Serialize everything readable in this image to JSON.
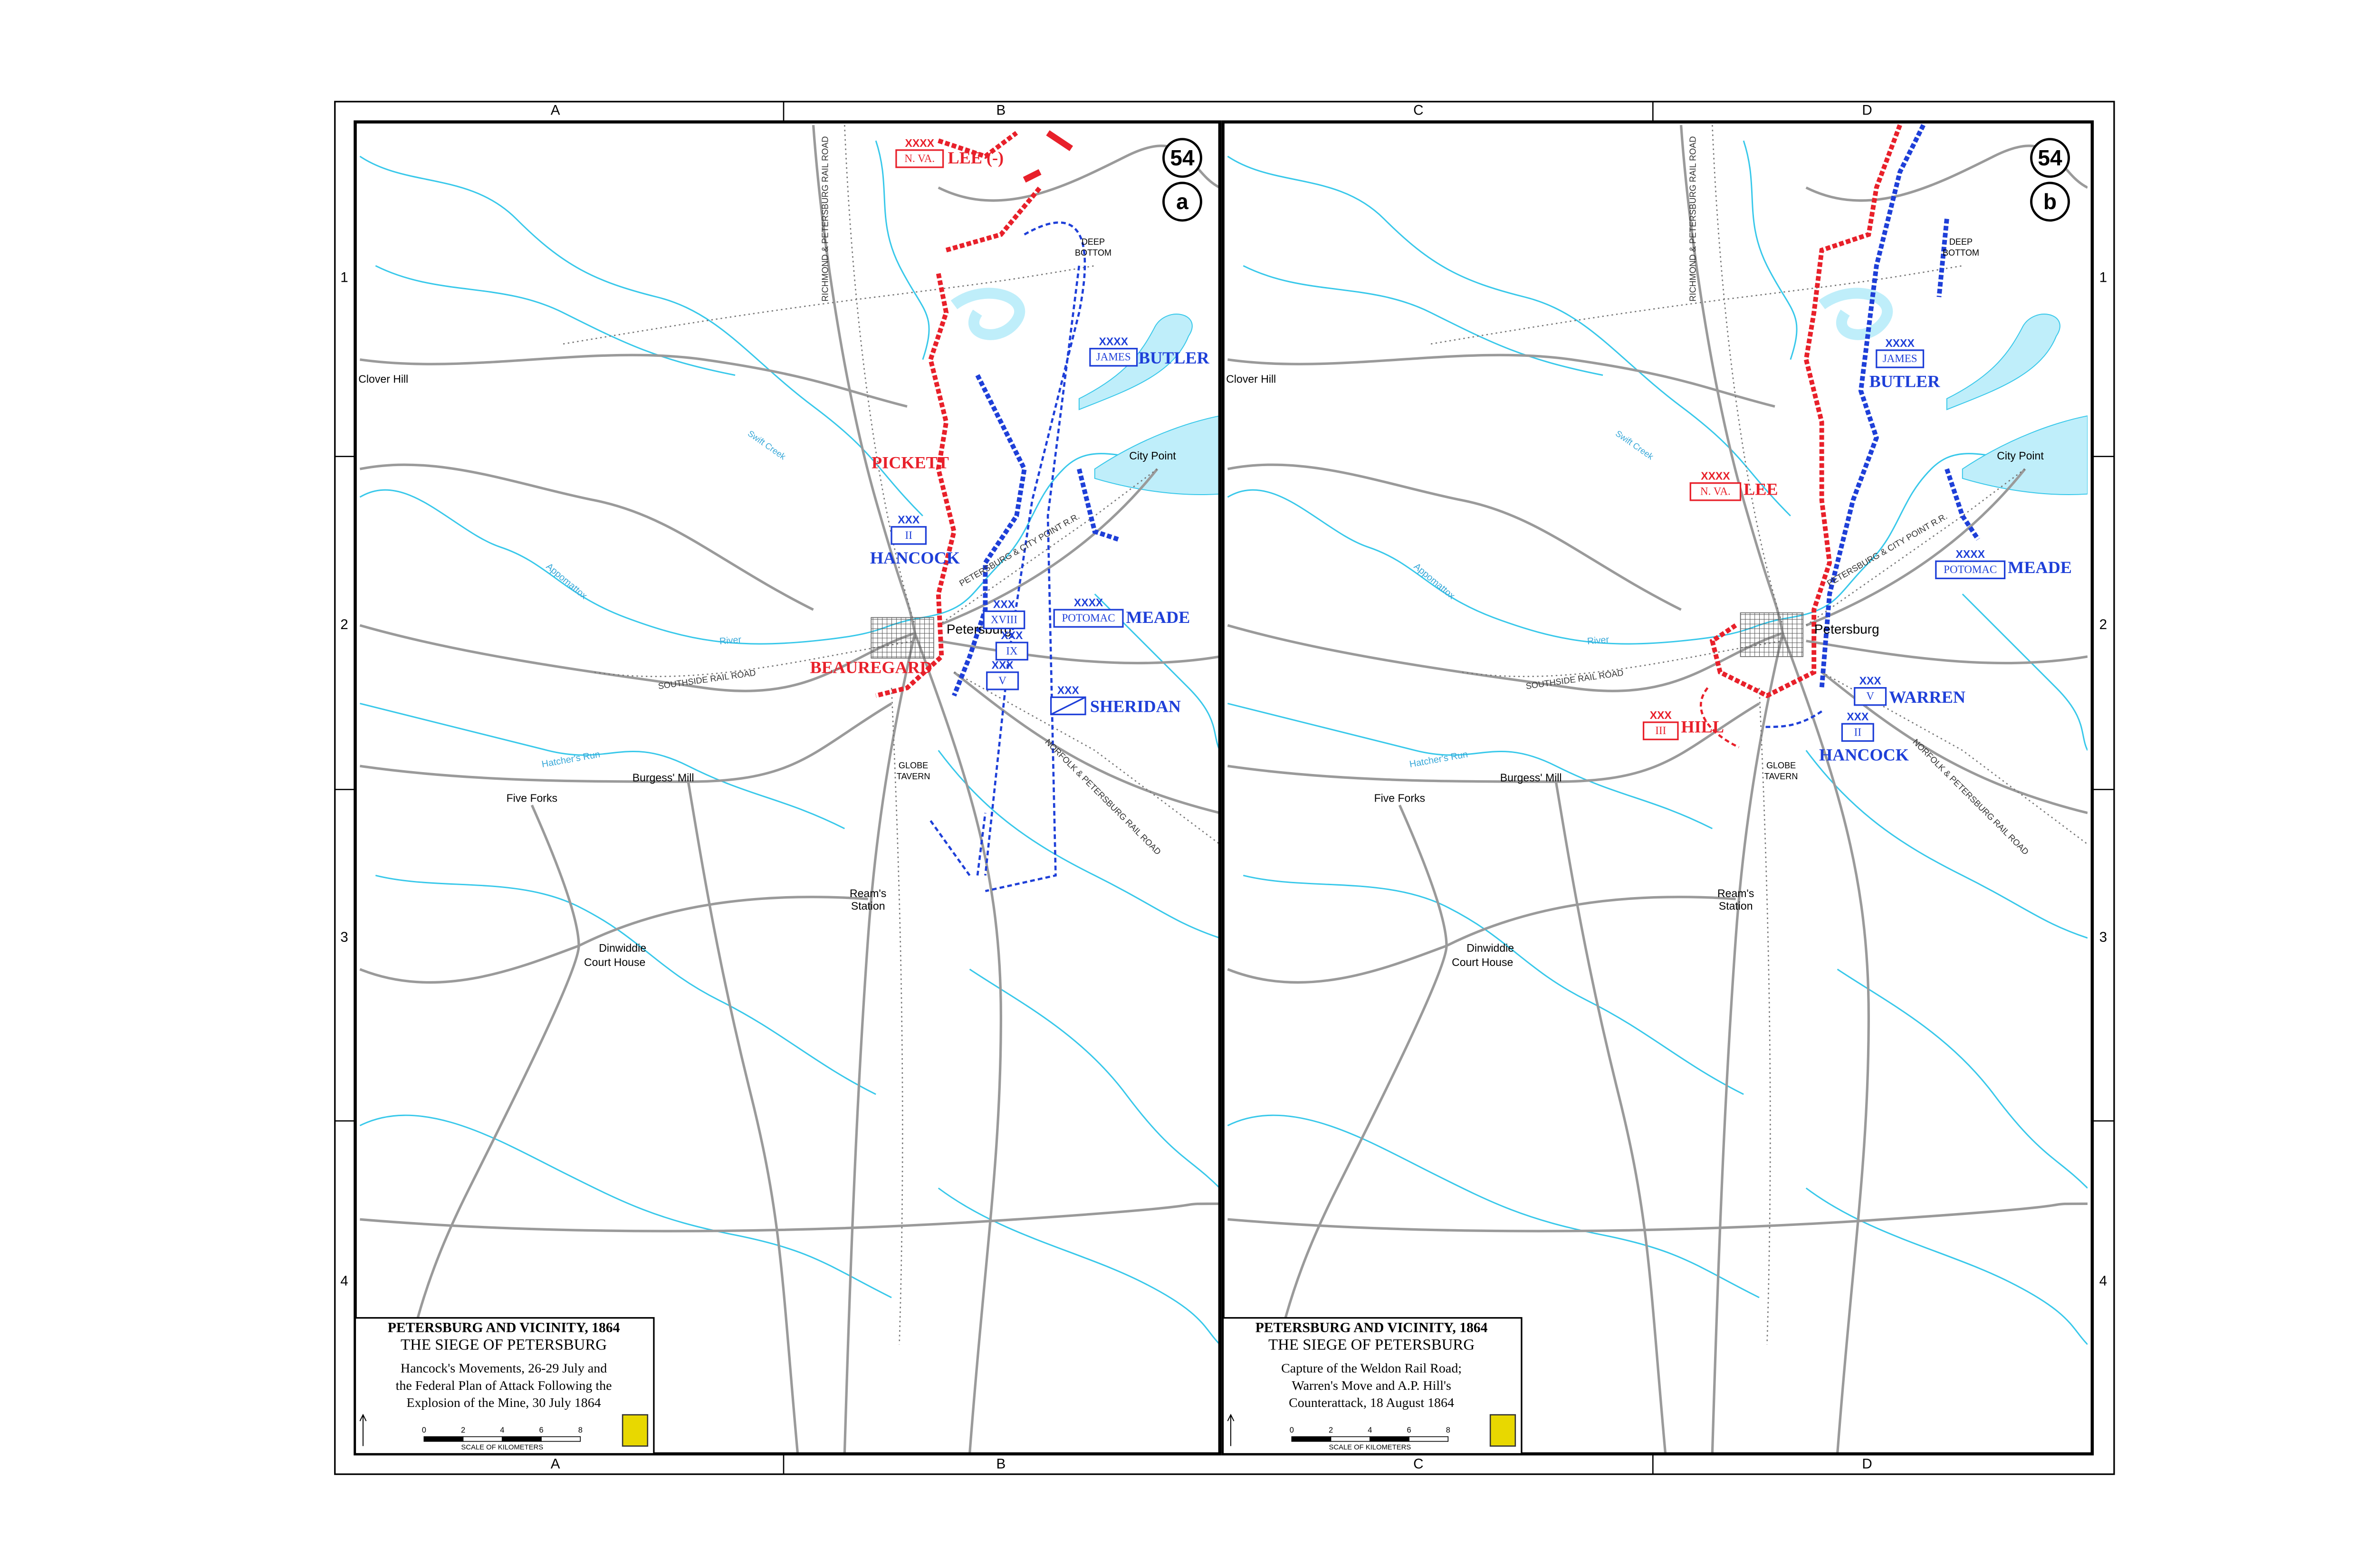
{
  "grid": {
    "columns_top": [
      "A",
      "B",
      "C",
      "D"
    ],
    "columns_bottom": [
      "A",
      "B",
      "C",
      "D"
    ],
    "rows_left": [
      "1",
      "2",
      "3",
      "4"
    ],
    "rows_right": [
      "1",
      "2",
      "3",
      "4"
    ]
  },
  "panels": [
    {
      "map_number": "54",
      "panel_letter": "a",
      "places": [
        "Clover Hill",
        "City Point",
        "Petersburg",
        "Burgess' Mill",
        "Five Forks",
        "GLOBE",
        "TAVERN",
        "Ream's",
        "Station",
        "Dinwiddie",
        "Court House",
        "DEEP",
        "BOTTOM"
      ],
      "features": [
        "RICHMOND & PETERSBURG RAIL ROAD",
        "SOUTHSIDE RAIL ROAD",
        "PETERSBURG & CITY POINT R.R.",
        "NORFOLK & PETERSBURG RAIL ROAD",
        "Swift Creek",
        "Appomattox",
        "River",
        "Hatcher's Run"
      ],
      "units": [
        {
          "echelon": "XXXX",
          "designation": "N. VA.",
          "commander": "LEE (-)",
          "color": "#e8202a"
        },
        {
          "commander": "PICKETT",
          "color": "#e8202a"
        },
        {
          "echelon": "XXX",
          "designation": "II",
          "commander": "HANCOCK",
          "color": "#1e3fd8"
        },
        {
          "commander": "BEAUREGARD",
          "color": "#e8202a"
        },
        {
          "echelon": "XXXX",
          "designation": "JAMES",
          "commander": "BUTLER",
          "color": "#1e3fd8"
        },
        {
          "echelon": "XXXX",
          "designation": "POTOMAC",
          "commander": "MEADE",
          "color": "#1e3fd8"
        },
        {
          "echelon": "XXX",
          "designation": "XVIII",
          "color": "#1e3fd8"
        },
        {
          "echelon": "XXX",
          "designation": "IX",
          "color": "#1e3fd8"
        },
        {
          "echelon": "XXX",
          "designation": "V",
          "color": "#1e3fd8"
        },
        {
          "echelon": "XXX",
          "commander": "SHERIDAN",
          "color": "#1e3fd8"
        }
      ],
      "title_block": {
        "title": "PETERSBURG AND VICINITY, 1864",
        "subtitle": "THE SIEGE OF PETERSBURG",
        "description": [
          "Hancock's Movements, 26-29 July and",
          "the Federal Plan of Attack Following the",
          "Explosion of the Mine, 30 July 1864"
        ],
        "scale_ticks": [
          0,
          2,
          4,
          6,
          8
        ],
        "scale_label": "SCALE OF KILOMETERS"
      }
    },
    {
      "map_number": "54",
      "panel_letter": "b",
      "places": [
        "Clover Hill",
        "City Point",
        "Petersburg",
        "Burgess' Mill",
        "Five Forks",
        "GLOBE",
        "TAVERN",
        "Ream's",
        "Station",
        "Dinwiddie",
        "Court House",
        "DEEP",
        "BOTTOM"
      ],
      "features": [
        "RICHMOND & PETERSBURG RAIL ROAD",
        "SOUTHSIDE RAIL ROAD",
        "PETERSBURG & CITY POINT R.R.",
        "NORFOLK & PETERSBURG RAIL ROAD",
        "Swift Creek",
        "Appomattox",
        "River",
        "Hatcher's Run"
      ],
      "units": [
        {
          "echelon": "XXXX",
          "designation": "JAMES",
          "commander": "BUTLER",
          "color": "#1e3fd8"
        },
        {
          "echelon": "XXXX",
          "designation": "N. VA.",
          "commander": "LEE",
          "color": "#e8202a"
        },
        {
          "echelon": "XXXX",
          "designation": "POTOMAC",
          "commander": "MEADE",
          "color": "#1e3fd8"
        },
        {
          "echelon": "XXX",
          "designation": "V",
          "commander": "WARREN",
          "color": "#1e3fd8"
        },
        {
          "echelon": "XXX",
          "designation": "III",
          "commander": "HILL",
          "color": "#e8202a"
        },
        {
          "echelon": "XXX",
          "designation": "II",
          "commander": "HANCOCK",
          "color": "#1e3fd8"
        }
      ],
      "title_block": {
        "title": "PETERSBURG AND VICINITY, 1864",
        "subtitle": "THE SIEGE OF PETERSBURG",
        "description": [
          "Capture of the Weldon Rail Road;",
          "Warren's Move and A.P. Hill's",
          "Counterattack, 18 August 1864"
        ],
        "scale_ticks": [
          0,
          2,
          4,
          6,
          8
        ],
        "scale_label": "SCALE OF KILOMETERS"
      }
    }
  ]
}
